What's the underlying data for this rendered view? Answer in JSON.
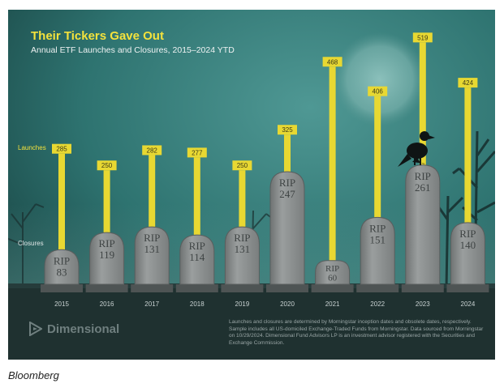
{
  "chart_data": {
    "type": "bar",
    "title": "Their Tickers Gave Out",
    "subtitle": "Annual ETF Launches and Closures, 2015–2024 YTD",
    "categories": [
      "2015",
      "2016",
      "2017",
      "2018",
      "2019",
      "2020",
      "2021",
      "2022",
      "2023",
      "2024"
    ],
    "series": [
      {
        "name": "Launches",
        "values": [
          285,
          250,
          282,
          277,
          250,
          325,
          468,
          406,
          519,
          424
        ]
      },
      {
        "name": "Closures",
        "values": [
          83,
          119,
          131,
          114,
          131,
          247,
          60,
          151,
          261,
          140
        ]
      }
    ],
    "tombstone_text": "RIP",
    "legend": {
      "launches": "Launches",
      "closures": "Closures",
      "placement": "left"
    },
    "ylim": [
      0,
      540
    ],
    "grid": false,
    "colors": {
      "launches": "#e8d832",
      "closures": "#8c9090",
      "title": "#f4e23c",
      "background": "#2f7b78"
    }
  },
  "footnote": "Launches and closures are determined by Morningstar inception dates and obsolete dates, respectively. Sample includes all US-domiciled Exchange-Traded Funds from Morningstar. Data sourced from Morningstar on 10/29/2024. Dimensional Fund Advisors LP is an investment advisor registered with the Securities and Exchange Commission.",
  "logo_text": "Dimensional",
  "source": "Bloomberg"
}
